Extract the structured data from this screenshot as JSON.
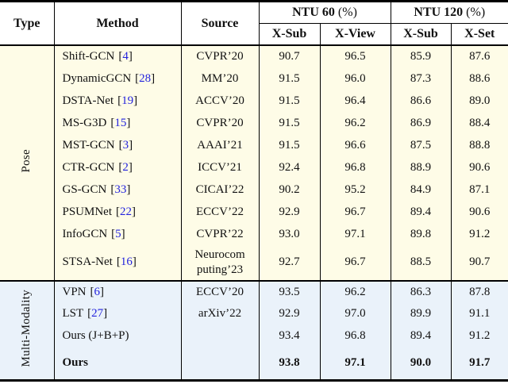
{
  "table": {
    "header": {
      "type": "Type",
      "method": "Method",
      "source": "Source",
      "groups": [
        {
          "label": "NTU 60",
          "unit": "(%)",
          "cols": [
            "X-Sub",
            "X-View"
          ]
        },
        {
          "label": "NTU 120",
          "unit": "(%)",
          "cols": [
            "X-Sub",
            "X-Set"
          ]
        }
      ]
    },
    "cite_brackets": [
      "[",
      "]"
    ],
    "colors": {
      "cite_blue": "#2323dd",
      "pose_section_bg": "#fefce7",
      "multimodality_section_bg": "#eaf2fa",
      "header_bg": "#ffffff",
      "rule": "#000000"
    },
    "sections": [
      {
        "type_label": "Pose",
        "bg": "#fefce7",
        "rows": [
          {
            "method": "Shift-GCN",
            "cite": "4",
            "source": "CVPR’20",
            "values": [
              "90.7",
              "96.5",
              "85.9",
              "87.6"
            ]
          },
          {
            "method": "DynamicGCN",
            "cite": "28",
            "source": "MM’20",
            "values": [
              "91.5",
              "96.0",
              "87.3",
              "88.6"
            ]
          },
          {
            "method": "DSTA-Net",
            "cite": "19",
            "source": "ACCV’20",
            "values": [
              "91.5",
              "96.4",
              "86.6",
              "89.0"
            ]
          },
          {
            "method": "MS-G3D",
            "cite": "15",
            "source": "CVPR’20",
            "values": [
              "91.5",
              "96.2",
              "86.9",
              "88.4"
            ]
          },
          {
            "method": "MST-GCN",
            "cite": "3",
            "source": "AAAI’21",
            "values": [
              "91.5",
              "96.6",
              "87.5",
              "88.8"
            ]
          },
          {
            "method": "CTR-GCN",
            "cite": "2",
            "source": "ICCV’21",
            "values": [
              "92.4",
              "96.8",
              "88.9",
              "90.6"
            ]
          },
          {
            "method": "GS-GCN",
            "cite": "33",
            "source": "CICAI’22",
            "values": [
              "90.2",
              "95.2",
              "84.9",
              "87.1"
            ]
          },
          {
            "method": "PSUMNet",
            "cite": "22",
            "source": "ECCV’22",
            "values": [
              "92.9",
              "96.7",
              "89.4",
              "90.6"
            ]
          },
          {
            "method": "InfoGCN",
            "cite": "5",
            "source": "CVPR’22",
            "values": [
              "93.0",
              "97.1",
              "89.8",
              "91.2"
            ]
          },
          {
            "method": "STSA-Net",
            "cite": "16",
            "source": "Neurocom puting’23",
            "values": [
              "92.7",
              "96.7",
              "88.5",
              "90.7"
            ]
          }
        ]
      },
      {
        "type_label": "Multi-Modality",
        "bg": "#eaf2fa",
        "rows": [
          {
            "method": "VPN",
            "cite": "6",
            "source": "ECCV’20",
            "values": [
              "93.5",
              "96.2",
              "86.3",
              "87.8"
            ]
          },
          {
            "method": "LST",
            "cite": "27",
            "source": "arXiv’22",
            "values": [
              "92.9",
              "97.0",
              "89.9",
              "91.1"
            ]
          },
          {
            "method": "Ours (J+B+P)",
            "cite": null,
            "source": "",
            "values": [
              "93.4",
              "96.8",
              "89.4",
              "91.2"
            ]
          },
          {
            "method": "Ours",
            "cite": null,
            "source": "",
            "values": [
              "93.8",
              "97.1",
              "90.0",
              "91.7"
            ],
            "bold": true,
            "spaced": true
          }
        ]
      }
    ]
  }
}
